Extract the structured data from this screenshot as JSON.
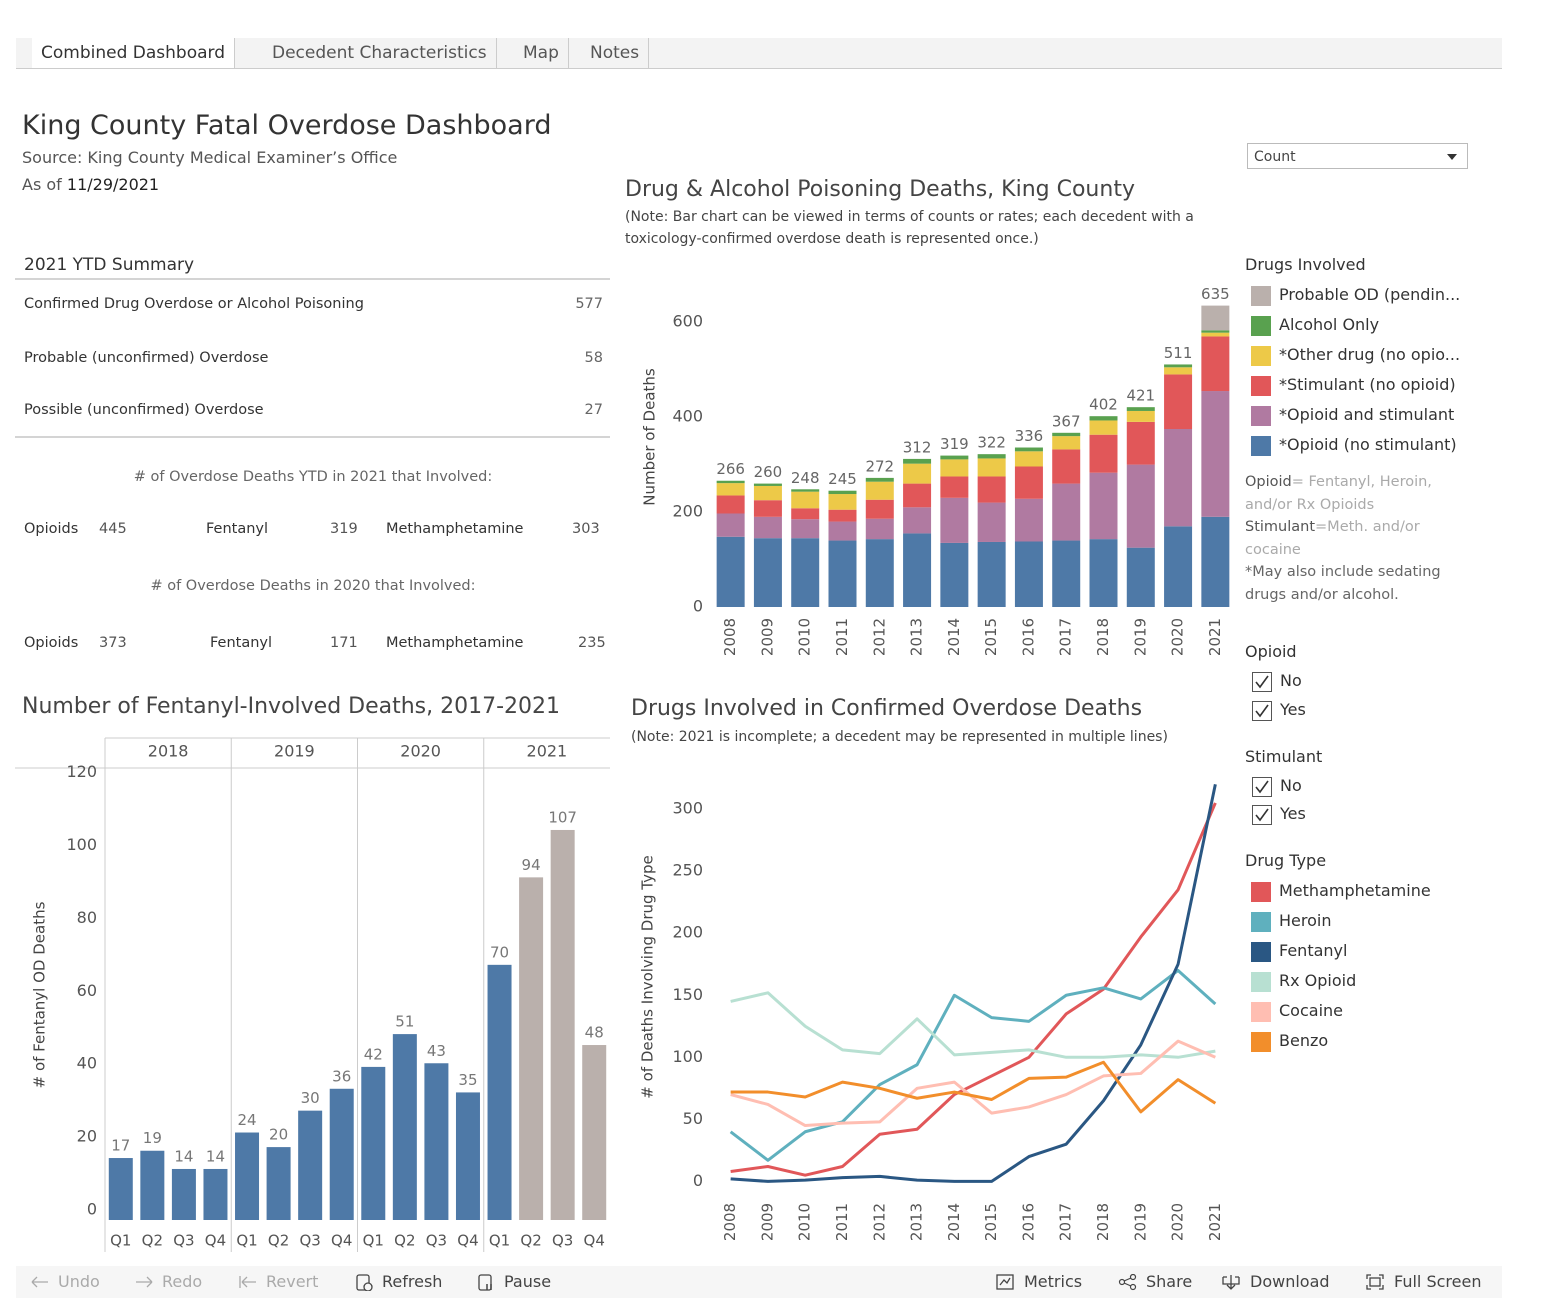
{
  "tabs": [
    "Combined Dashboard",
    "Decedent Characteristics",
    "Map",
    "Notes"
  ],
  "header": {
    "title": "King County Fatal Overdose Dashboard",
    "source": "Source: King County Medical Examiner’s Office",
    "as_of_label": "As of",
    "as_of_date": "11/29/2021"
  },
  "dropdown": "Count",
  "summary": {
    "title": "2021 YTD Summary",
    "rows": [
      {
        "label": "Confirmed Drug Overdose or Alcohol Poisoning",
        "value": 577
      },
      {
        "label": "Probable (unconfirmed) Overdose",
        "value": 58
      },
      {
        "label": "Possible (unconfirmed) Overdose",
        "value": 27
      }
    ],
    "ytd_heading": "# of Overdose Deaths YTD in 2021 that Involved:",
    "ytd": [
      {
        "label": "Opioids",
        "value": 445
      },
      {
        "label": "Fentanyl",
        "value": 319
      },
      {
        "label": "Methamphetamine",
        "value": 303
      }
    ],
    "prev_heading": "# of Overdose Deaths in 2020 that Involved:",
    "prev": [
      {
        "label": "Opioids",
        "value": 373
      },
      {
        "label": "Fentanyl",
        "value": 171
      },
      {
        "label": "Methamphetamine",
        "value": 235
      }
    ]
  },
  "legend_notes": [
    {
      "term": "Opioid",
      "text": "= Fentanyl, Heroin, and/or Rx Opioids"
    },
    {
      "term": "Stimulant",
      "text": "=Meth. and/or cocaine"
    },
    {
      "term": "",
      "text": "*May also include sedating drugs and/or alcohol."
    }
  ],
  "filters": [
    {
      "title": "Opioid",
      "options": [
        "No",
        "Yes"
      ]
    },
    {
      "title": "Stimulant",
      "options": [
        "No",
        "Yes"
      ]
    }
  ],
  "toolbar": [
    "Undo",
    "Redo",
    "Revert",
    "Refresh",
    "Pause",
    "Metrics",
    "Share",
    "Download",
    "Full Screen"
  ],
  "chart_data": [
    {
      "type": "stacked_bar",
      "title": "Drug & Alcohol Poisoning Deaths, King County",
      "subtitle": "(Note: Bar chart can be viewed in terms of counts or rates; each decedent with a toxicology-confirmed overdose death is represented once.)",
      "y_label": "Number of Deaths",
      "legend_title": "Drugs Involved",
      "categories": [
        "2008",
        "2009",
        "2010",
        "2011",
        "2012",
        "2013",
        "2014",
        "2015",
        "2016",
        "2017",
        "2018",
        "2019",
        "2020",
        "2021"
      ],
      "series": [
        {
          "name": "*Opioid (no stimulant)",
          "color": "#4e79a7",
          "values": [
            148,
            145,
            145,
            140,
            143,
            155,
            135,
            137,
            138,
            140,
            143,
            125,
            170,
            190
          ]
        },
        {
          "name": "*Opioid and stimulant",
          "color": "#b07aa1",
          "values": [
            49,
            45,
            40,
            40,
            43,
            55,
            95,
            83,
            90,
            120,
            140,
            175,
            205,
            265
          ]
        },
        {
          "name": "*Stimulant (no opioid)",
          "color": "#e15759",
          "values": [
            38,
            35,
            23,
            25,
            40,
            50,
            45,
            55,
            68,
            72,
            80,
            90,
            115,
            115
          ]
        },
        {
          "name": "*Other drug (no opio...",
          "color": "#edc948",
          "values": [
            26,
            30,
            35,
            33,
            38,
            42,
            36,
            38,
            32,
            28,
            30,
            23,
            15,
            8
          ]
        },
        {
          "name": "Alcohol Only",
          "color": "#59a14f",
          "values": [
            5,
            5,
            5,
            7,
            8,
            10,
            8,
            9,
            8,
            7,
            9,
            8,
            6,
            5
          ]
        },
        {
          "name": "Probable OD (pendin...",
          "color": "#bab0ac",
          "values": [
            0,
            0,
            0,
            0,
            0,
            0,
            0,
            0,
            0,
            0,
            0,
            0,
            0,
            52
          ]
        }
      ],
      "total_labels": [
        266,
        260,
        248,
        245,
        272,
        312,
        319,
        322,
        336,
        367,
        402,
        421,
        511,
        635
      ],
      "ylim": [
        0,
        710
      ],
      "yticks": [
        0,
        200,
        400,
        600
      ],
      "grid": false
    },
    {
      "type": "bar",
      "title": "Number of Fentanyl-Involved Deaths, 2017-2021",
      "y_label": "# of Fentanyl OD Deaths",
      "groups": [
        "2018",
        "2019",
        "2020",
        "2021"
      ],
      "categories": [
        "Q1",
        "Q2",
        "Q3",
        "Q4",
        "Q1",
        "Q2",
        "Q3",
        "Q4",
        "Q1",
        "Q2",
        "Q3",
        "Q4",
        "Q1",
        "Q2",
        "Q3",
        "Q4"
      ],
      "values": [
        17,
        19,
        14,
        14,
        24,
        20,
        30,
        36,
        42,
        51,
        43,
        35,
        70,
        94,
        107,
        48
      ],
      "colors": [
        "#4e79a7",
        "#4e79a7",
        "#4e79a7",
        "#4e79a7",
        "#4e79a7",
        "#4e79a7",
        "#4e79a7",
        "#4e79a7",
        "#4e79a7",
        "#4e79a7",
        "#4e79a7",
        "#4e79a7",
        "#4e79a7",
        "#bab0ac",
        "#bab0ac",
        "#bab0ac"
      ],
      "ylim": [
        0,
        124
      ],
      "yticks": [
        0,
        20,
        40,
        60,
        80,
        100,
        120
      ],
      "grid": false
    },
    {
      "type": "line",
      "title": "Drugs Involved in Confirmed Overdose Deaths",
      "subtitle": "(Note: 2021 is incomplete; a decedent may be represented in multiple lines)",
      "y_label": "# of Deaths Involving Drug Type",
      "legend_title": "Drug Type",
      "categories": [
        "2008",
        "2009",
        "2010",
        "2011",
        "2012",
        "2013",
        "2014",
        "2015",
        "2016",
        "2017",
        "2018",
        "2019",
        "2020",
        "2021"
      ],
      "series": [
        {
          "name": "Methamphetamine",
          "color": "#e15759",
          "values": [
            8,
            12,
            5,
            12,
            38,
            42,
            70,
            85,
            100,
            135,
            155,
            197,
            235,
            305
          ]
        },
        {
          "name": "Heroin",
          "color": "#5fb0be",
          "values": [
            40,
            17,
            40,
            48,
            78,
            94,
            150,
            132,
            129,
            150,
            156,
            147,
            170,
            143
          ]
        },
        {
          "name": "Fentanyl",
          "color": "#2a5783",
          "values": [
            2,
            0,
            1,
            3,
            4,
            1,
            0,
            0,
            20,
            30,
            65,
            110,
            175,
            320
          ]
        },
        {
          "name": "Rx Opioid",
          "color": "#b8e0d2",
          "values": [
            145,
            152,
            125,
            106,
            103,
            131,
            102,
            104,
            106,
            100,
            100,
            102,
            100,
            105
          ]
        },
        {
          "name": "Cocaine",
          "color": "#ffbeb2",
          "values": [
            70,
            62,
            45,
            47,
            48,
            75,
            80,
            55,
            60,
            70,
            85,
            87,
            113,
            100
          ]
        },
        {
          "name": "Benzo",
          "color": "#f28e2b",
          "values": [
            72,
            72,
            68,
            80,
            75,
            67,
            72,
            66,
            83,
            84,
            96,
            56,
            82,
            63
          ]
        }
      ],
      "ylim": [
        -15,
        338
      ],
      "yticks": [
        0,
        50,
        100,
        150,
        200,
        250,
        300
      ],
      "grid": false
    }
  ]
}
